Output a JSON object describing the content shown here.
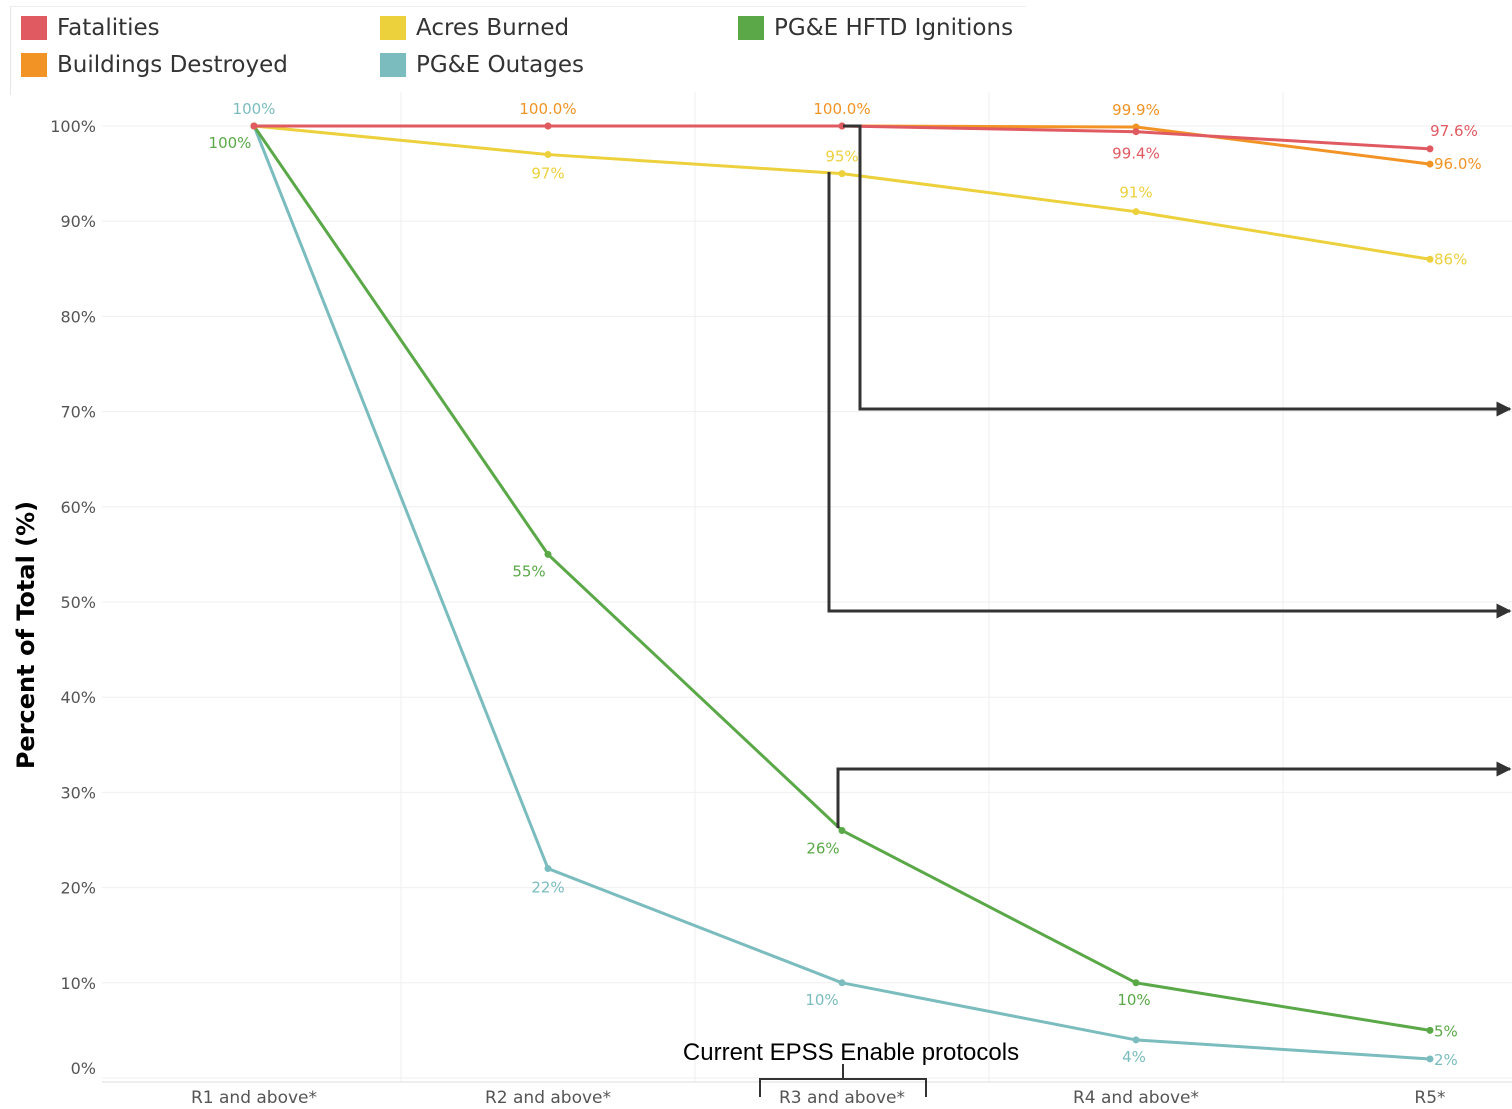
{
  "chart_data": {
    "type": "line",
    "ylabel": "Percent of Total (%)",
    "xlabel": "",
    "ylim": [
      0,
      100
    ],
    "yticks": [
      "0%",
      "10%",
      "20%",
      "30%",
      "40%",
      "50%",
      "60%",
      "70%",
      "80%",
      "90%",
      "100%"
    ],
    "grid": true,
    "legend_position": "top-left",
    "categories": [
      "R1 and above*",
      "R2 and above*",
      "R3 and above*",
      "R4 and above*",
      "R5*"
    ],
    "series": [
      {
        "name": "Fatalities",
        "color": "#e05a62",
        "values": [
          100,
          100,
          100,
          99.4,
          97.6
        ],
        "labels": [
          "",
          "",
          "",
          "99.4%",
          "97.6%"
        ]
      },
      {
        "name": "Buildings Destroyed",
        "color": "#f29325",
        "values": [
          100,
          100.0,
          100.0,
          99.9,
          96.0
        ],
        "labels": [
          "",
          "100.0%",
          "100.0%",
          "99.9%",
          "96.0%"
        ]
      },
      {
        "name": "Acres Burned",
        "color": "#ecd13d",
        "values": [
          100,
          97,
          95,
          91,
          86
        ],
        "labels": [
          "",
          "97%",
          "95%",
          "91%",
          "86%"
        ]
      },
      {
        "name": "PG&E Outages",
        "color": "#7bbcbe",
        "values": [
          100,
          22,
          10,
          4,
          2
        ],
        "labels": [
          "100%",
          "22%",
          "10%",
          "4%",
          "2%"
        ]
      },
      {
        "name": "PG&E HFTD Ignitions",
        "color": "#5aa848",
        "values": [
          100,
          55,
          26,
          10,
          5
        ],
        "labels": [
          "100%",
          "55%",
          "26%",
          "10%",
          "5%"
        ]
      }
    ],
    "annotations": {
      "bracket_label": "Current EPSS Enable protocols",
      "bracket_category": "R3 and above*"
    }
  },
  "legend": {
    "items": [
      {
        "name": "Fatalities",
        "color": "#e05a62"
      },
      {
        "name": "Buildings Destroyed",
        "color": "#f29325"
      },
      {
        "name": "Acres Burned",
        "color": "#ecd13d"
      },
      {
        "name": "PG&E Outages",
        "color": "#7bbcbe"
      },
      {
        "name": "PG&E HFTD Ignitions",
        "color": "#5aa848"
      }
    ]
  }
}
